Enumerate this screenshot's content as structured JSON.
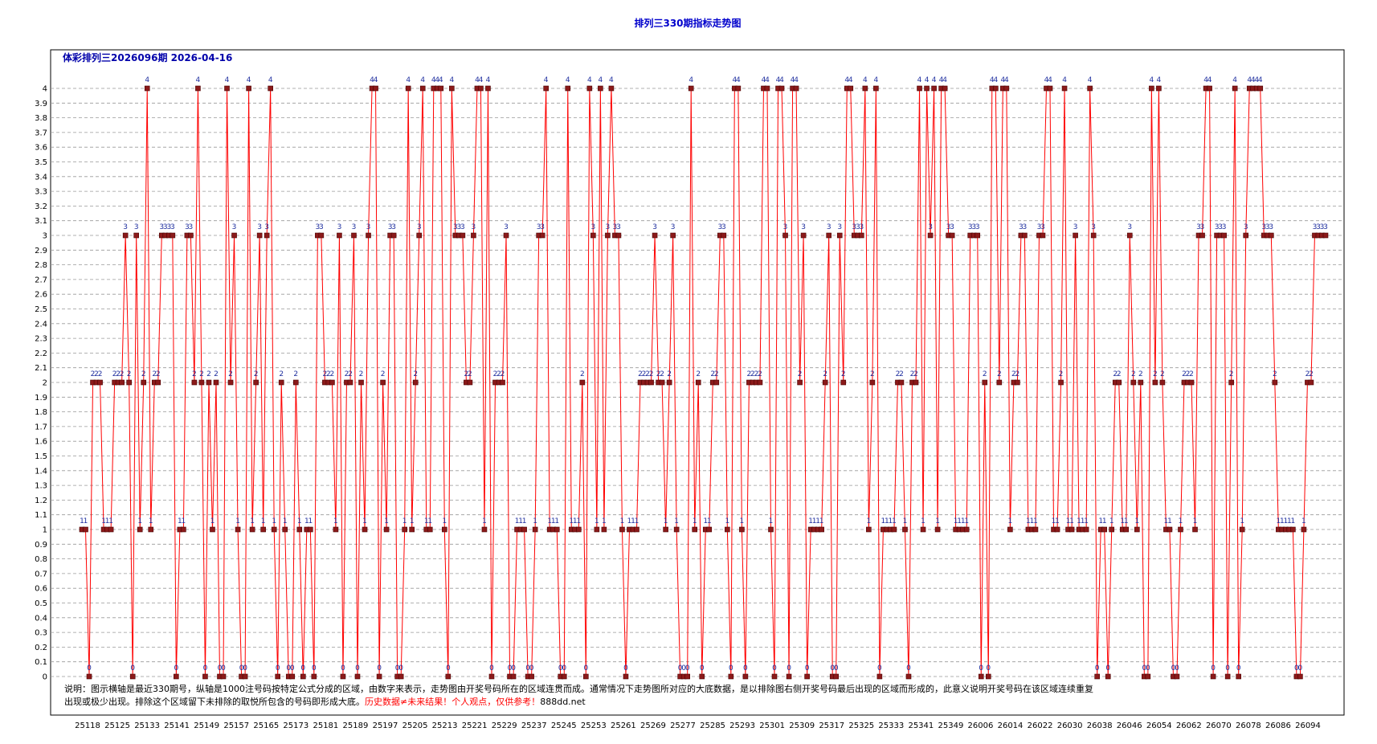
{
  "chart_data": {
    "type": "line",
    "title": "排列三330期指标走势图",
    "subtitle": "体彩排列三2026096期 2026-04-16",
    "xlabel": "",
    "ylabel": "",
    "ylim": [
      0,
      4
    ],
    "y_step": 0.1,
    "grid": true,
    "x_tick_labels": [
      "25118",
      "25125",
      "25133",
      "25141",
      "25149",
      "25157",
      "25165",
      "25173",
      "25181",
      "25189",
      "25197",
      "25205",
      "25213",
      "25221",
      "25229",
      "25237",
      "25245",
      "25253",
      "25261",
      "25269",
      "25277",
      "25285",
      "25293",
      "25301",
      "25309",
      "25317",
      "25325",
      "25333",
      "25341",
      "25349",
      "26006",
      "26014",
      "26022",
      "26030",
      "26038",
      "26046",
      "26054",
      "26062",
      "26070",
      "26078",
      "26086",
      "26094"
    ],
    "series": [
      {
        "values": [
          1,
          1,
          0,
          2,
          2,
          2,
          1,
          1,
          1,
          2,
          2,
          2,
          3,
          2,
          0,
          3,
          1,
          2,
          4,
          1,
          2,
          2,
          3,
          3,
          3,
          3,
          0,
          1,
          1,
          3,
          3,
          2,
          4,
          2,
          0,
          2,
          1,
          2,
          0,
          0,
          4,
          2,
          3,
          1,
          0,
          0,
          4,
          1,
          2,
          3,
          1,
          3,
          4,
          1,
          0,
          2,
          1,
          0,
          0,
          2,
          1,
          0,
          1,
          1,
          0,
          3,
          3,
          2,
          2,
          2,
          1,
          3,
          0,
          2,
          2,
          3,
          0,
          2,
          1,
          3,
          4,
          4,
          0,
          2,
          1,
          3,
          3,
          0,
          0,
          1,
          4,
          1,
          2,
          3,
          4,
          1,
          1,
          4,
          4,
          4,
          1,
          0,
          4,
          3,
          3,
          3,
          2,
          2,
          3,
          4,
          4,
          1,
          4,
          0,
          2,
          2,
          2,
          3,
          0,
          0,
          1,
          1,
          1,
          0,
          0,
          1,
          3,
          3,
          4,
          1,
          1,
          1,
          0,
          0,
          4,
          1,
          1,
          1,
          2,
          0,
          4,
          3,
          1,
          4,
          1,
          3,
          4,
          3,
          3,
          1,
          0,
          1,
          1,
          1,
          2,
          2,
          2,
          2,
          3,
          2,
          2,
          1,
          2,
          3,
          1,
          0,
          0,
          0,
          4,
          1,
          2,
          0,
          1,
          1,
          2,
          2,
          3,
          3,
          1,
          0,
          4,
          4,
          1,
          0,
          2,
          2,
          2,
          2,
          4,
          4,
          1,
          0,
          4,
          4,
          3,
          0,
          4,
          4,
          2,
          3,
          0,
          1,
          1,
          1,
          1,
          2,
          3,
          0,
          0,
          3,
          2,
          4,
          4,
          3,
          3,
          3,
          4,
          1,
          2,
          4,
          0,
          1,
          1,
          1,
          1,
          2,
          2,
          1,
          0,
          2,
          2,
          4,
          1,
          4,
          3,
          4,
          1,
          4,
          4,
          3,
          3,
          1,
          1,
          1,
          1,
          3,
          3,
          3,
          0,
          2,
          0,
          4,
          4,
          2,
          4,
          4,
          1,
          2,
          2,
          3,
          3,
          1,
          1,
          1,
          3,
          3,
          4,
          4,
          1,
          1,
          2,
          4,
          1,
          1,
          3,
          1,
          1,
          1,
          4,
          3,
          0,
          1,
          1,
          0,
          1,
          2,
          2,
          1,
          1,
          3,
          2,
          1,
          2,
          0,
          0,
          4,
          2,
          4,
          2,
          1,
          1,
          0,
          0,
          1,
          2,
          2,
          2,
          1,
          3,
          3,
          4,
          4,
          0,
          3,
          3,
          3,
          0,
          2,
          4,
          0,
          1,
          3,
          4,
          4,
          4,
          4,
          3,
          3,
          3,
          2,
          1,
          1,
          1,
          1,
          1,
          0,
          0,
          1,
          2,
          2,
          3,
          3,
          3,
          3
        ]
      }
    ],
    "colors": {
      "line": "#ff0000",
      "marker": "#8b1a1a",
      "label": "#1f2f9f",
      "title": "#0000cc",
      "grid": "#999999"
    },
    "notes": {
      "line1": "说明：图示横轴是最近330期号，纵轴是1000注号码按特定公式分成的区域，由数字来表示，走势图由开奖号码所在的区域连贯而成。通常情况下走势图所对应的大底数据，是以排除图右侧开奖号码最后出现的区域而形成的，此意义说明开奖号码在该区域连续重复",
      "line2a": "出现或极少出现。排除这个区域留下未排除的取悦所包含的号码即形成大底。",
      "line2b": "历史数据≠未来结果！个人观点，仅供参考！",
      "line2c": "888dd.net"
    }
  }
}
